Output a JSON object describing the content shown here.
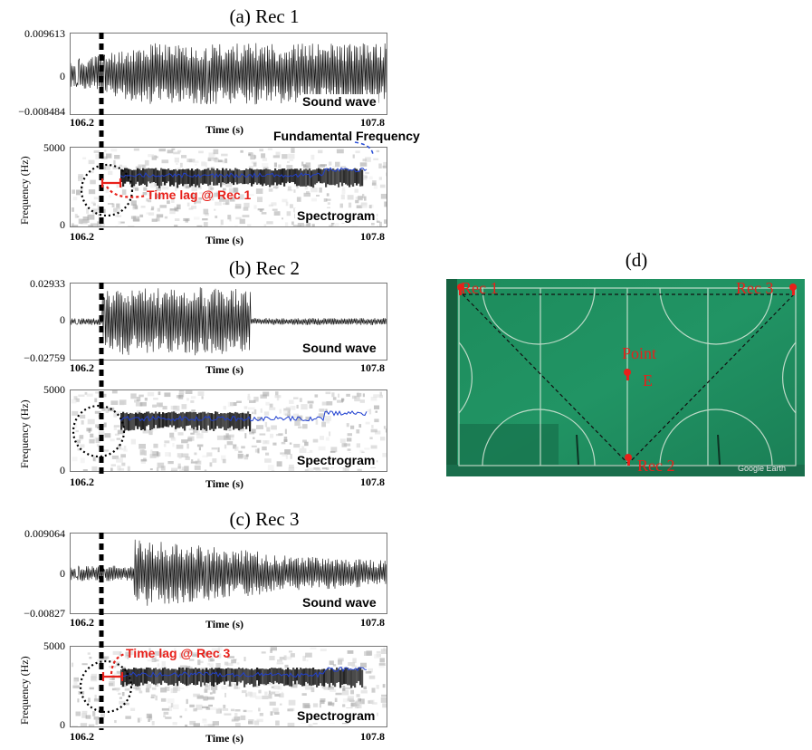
{
  "panels": [
    {
      "title": "(a) Rec 1",
      "wave": {
        "ymax": "0.009613",
        "yzero": "0",
        "ymin": "−0.008484",
        "xmin": "106.2",
        "xmax": "107.8",
        "xlabel": "Time (s)",
        "label": "Sound wave",
        "envelope": "steady"
      },
      "spec": {
        "ymax": "5000",
        "ymin": "0",
        "ylabel": "Frequency (Hz)",
        "xmin": "106.2",
        "xmax": "107.8",
        "xlabel": "Time (s)",
        "label": "Spectrogram",
        "annotation": "Time lag @ Rec 1",
        "top_annotation": "Fundamental Frequency"
      }
    },
    {
      "title": "(b) Rec 2",
      "wave": {
        "ymax": "0.02933",
        "yzero": "0",
        "ymin": "−0.02759",
        "xmin": "106.2",
        "xmax": "107.8",
        "xlabel": "Time (s)",
        "label": "Sound wave",
        "envelope": "burst"
      },
      "spec": {
        "ymax": "5000",
        "ymin": "0",
        "ylabel": "Frequency (Hz)",
        "xmin": "106.2",
        "xmax": "107.8",
        "xlabel": "Time (s)",
        "label": "Spectrogram"
      }
    },
    {
      "title": "(c) Rec 3",
      "wave": {
        "ymax": "0.009064",
        "yzero": "0",
        "ymin": "−0.00827",
        "xmin": "106.2",
        "xmax": "107.8",
        "xlabel": "Time (s)",
        "label": "Sound wave",
        "envelope": "decay"
      },
      "spec": {
        "ymax": "5000",
        "ymin": "0",
        "ylabel": "Frequency (Hz)",
        "xmin": "106.2",
        "xmax": "107.8",
        "xlabel": "Time (s)",
        "label": "Spectrogram",
        "annotation": "Time lag @ Rec 3"
      }
    }
  ],
  "map": {
    "title": "(d)",
    "rec1": "Rec 1",
    "rec2": "Rec 2",
    "rec3": "Rec 3",
    "point_line1": "Point",
    "point_line2": "E",
    "watermark": "Google Earth",
    "colors": {
      "field": "#1f8a5a",
      "pin": "#e8201a",
      "line": "#111111"
    }
  }
}
